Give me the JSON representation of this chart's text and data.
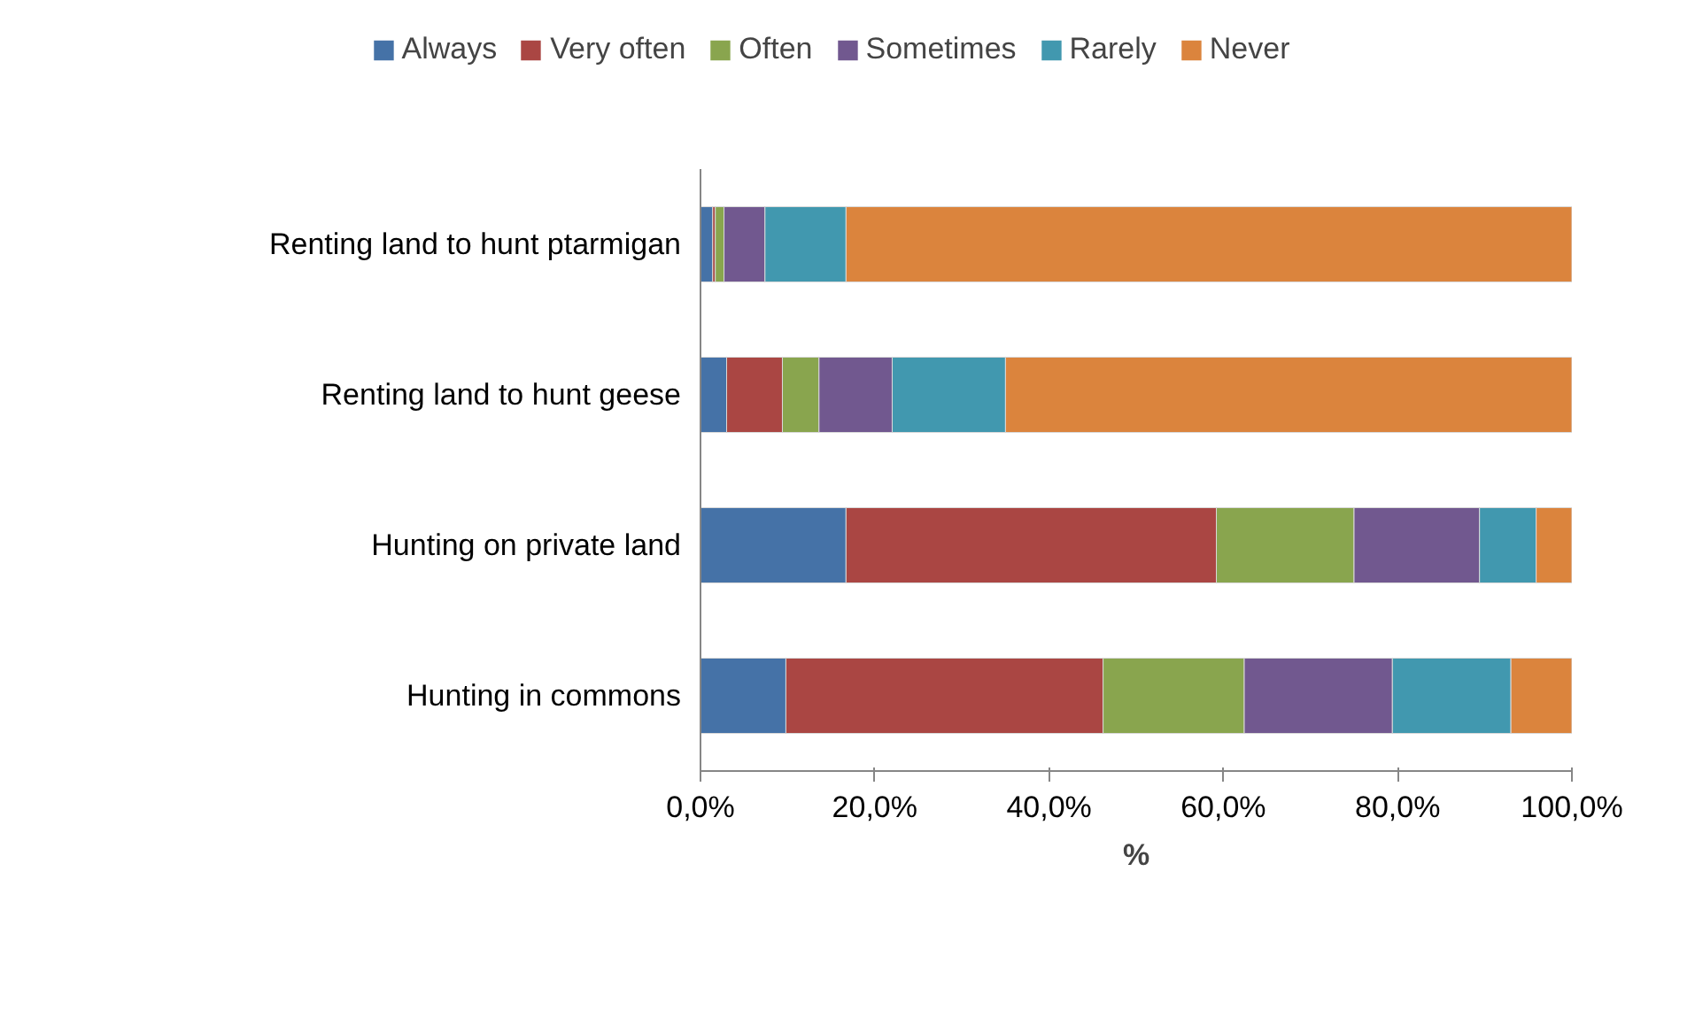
{
  "chart_data": {
    "type": "bar",
    "orientation": "horizontal",
    "stacked": true,
    "xlabel": "%",
    "categories": [
      "Renting land to hunt ptarmigan",
      "Renting land to hunt geese",
      "Hunting on private land",
      "Hunting in commons"
    ],
    "series": [
      {
        "name": "Always",
        "color": "#4572a7",
        "values": [
          1.4,
          3.0,
          16.7,
          9.8
        ]
      },
      {
        "name": "Very often",
        "color": "#aa4643",
        "values": [
          0.3,
          6.4,
          42.5,
          36.4
        ]
      },
      {
        "name": "Often",
        "color": "#89a54e",
        "values": [
          1.0,
          4.2,
          15.8,
          16.2
        ]
      },
      {
        "name": "Sometimes",
        "color": "#71588f",
        "values": [
          4.7,
          8.4,
          14.4,
          17.0
        ]
      },
      {
        "name": "Rarely",
        "color": "#4198af",
        "values": [
          9.3,
          13.0,
          6.5,
          13.6
        ]
      },
      {
        "name": "Never",
        "color": "#db843d",
        "values": [
          83.3,
          65.0,
          4.1,
          7.0
        ]
      }
    ],
    "xlim": [
      0,
      100
    ],
    "xticks": [
      {
        "value": 0,
        "label": "0,0%"
      },
      {
        "value": 20,
        "label": "20,0%"
      },
      {
        "value": 40,
        "label": "40,0%"
      },
      {
        "value": 60,
        "label": "60,0%"
      },
      {
        "value": 80,
        "label": "80,0%"
      },
      {
        "value": 100,
        "label": "100,0%"
      }
    ],
    "grid": false,
    "legend": "top"
  }
}
